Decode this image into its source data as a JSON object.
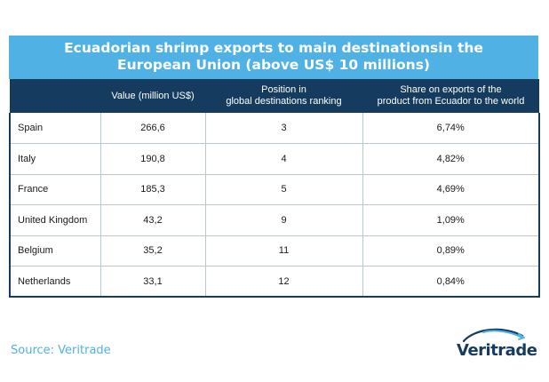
{
  "title": {
    "line1": "Ecuadorian shrimp exports to main destinationsin the",
    "line2": "European Union (above US$ 10 millions)"
  },
  "headers": {
    "country": "",
    "value_line1": "Value (million US$)",
    "value_line2": "",
    "position_line1": "Position in",
    "position_line2": "global destinations ranking",
    "share_line1": "Share on exports of the",
    "share_line2": "product from Ecuador to the world"
  },
  "rows": [
    {
      "country": "Spain",
      "value": "266,6",
      "position": "3",
      "share": "6,74%"
    },
    {
      "country": "Italy",
      "value": "190,8",
      "position": "4",
      "share": "4,82%"
    },
    {
      "country": "France",
      "value": "185,3",
      "position": "5",
      "share": "4,69%"
    },
    {
      "country": "United Kingdom",
      "value": "43,2",
      "position": "9",
      "share": "1,09%"
    },
    {
      "country": "Belgium",
      "value": "35,2",
      "position": "11",
      "share": "0,89%"
    },
    {
      "country": "Netherlands",
      "value": "33,1",
      "position": "12",
      "share": "0,84%"
    }
  ],
  "source": "Source: Veritrade",
  "logo": {
    "text": "Veritrade",
    "icon": "orbit-swoosh-icon"
  },
  "colors": {
    "title_bg": "#4fb1e4",
    "header_bg": "#153b5e",
    "source_text": "#4fb1e4"
  }
}
